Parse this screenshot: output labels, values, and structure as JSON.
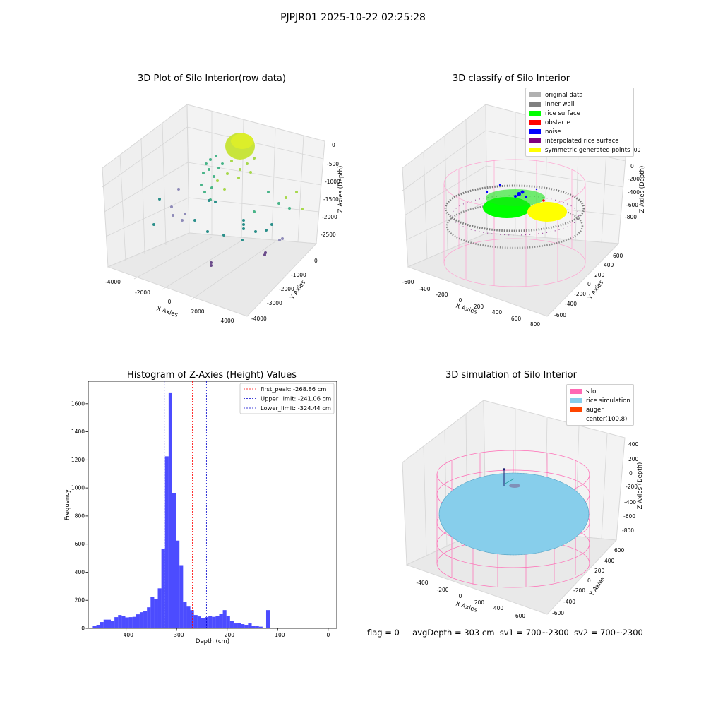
{
  "figure": {
    "suptitle": "PJPJR01 2025-10-22 02:25:28"
  },
  "panel_raw": {
    "title": "3D Plot of Silo Interior(row data)",
    "xlabel": "X Axies",
    "ylabel": "Y Axies",
    "zlabel": "Z Axies (Depth)",
    "xticks": [
      "-4000",
      "-2000",
      "0",
      "2000",
      "4000"
    ],
    "yticks": [
      "0",
      "-1000",
      "-2000",
      "-3000",
      "-4000"
    ],
    "zticks": [
      "0",
      "-500",
      "-1000",
      "-1500",
      "-2000",
      "-2500"
    ]
  },
  "panel_classify": {
    "title": "3D classify of Silo Interior",
    "xlabel": "X Axies",
    "ylabel": "Y Axies",
    "zlabel": "Z Axies (Depth)",
    "xticks": [
      "-600",
      "-400",
      "-200",
      "0",
      "200",
      "400",
      "600",
      "800"
    ],
    "yticks": [
      "600",
      "400",
      "200",
      "0",
      "-200",
      "-400",
      "-600"
    ],
    "zticks": [
      "200",
      "0",
      "-200",
      "-400",
      "-600",
      "-800"
    ],
    "legend": [
      {
        "label": "original data",
        "color": "#b0b0b0"
      },
      {
        "label": "inner wall",
        "color": "#808080"
      },
      {
        "label": "rice surface",
        "color": "#00ff00"
      },
      {
        "label": "obstacle",
        "color": "#ff0000"
      },
      {
        "label": "noise",
        "color": "#0000ff"
      },
      {
        "label": "interpolated rice surface",
        "color": "#800080"
      },
      {
        "label": "symmetric generated points",
        "color": "#ffff00"
      }
    ]
  },
  "panel_sim": {
    "title": "3D simulation of Silo Interior",
    "xlabel": "X Axies",
    "ylabel": "Y Axies",
    "zlabel": "Z Axies (Depth)",
    "xticks": [
      "-400",
      "-200",
      "0",
      "200",
      "400",
      "600"
    ],
    "yticks": [
      "600",
      "400",
      "200",
      "0",
      "-200",
      "-400",
      "-600"
    ],
    "zticks": [
      "400",
      "200",
      "0",
      "-200",
      "-400",
      "-600",
      "-800"
    ],
    "legend": [
      {
        "label": "silo",
        "color": "#ff69b4"
      },
      {
        "label": "rice simulation",
        "color": "#87ceeb"
      },
      {
        "label": "auger",
        "color": "#ff4500"
      },
      {
        "label": "center(100,8)",
        "color": "#ffffff"
      }
    ]
  },
  "footer": {
    "flag": "flag = 0",
    "avgDepth": "avgDepth = 303 cm",
    "sv1": "sv1 = 700~2300",
    "sv2": "sv2 = 700~2300"
  },
  "colors": {
    "hist_bar": "#0000ff",
    "first_peak": "#ff0000",
    "limits": "#0000cc"
  },
  "chart_data": [
    {
      "type": "bar",
      "title": "Histogram of Z-Axies (Height) Values",
      "xlabel": "Depth (cm)",
      "ylabel": "Frequency",
      "xlim": [
        -475,
        17
      ],
      "ylim": [
        0,
        1760
      ],
      "xticks": [
        -400,
        -300,
        -200,
        -100,
        0
      ],
      "yticks": [
        0,
        200,
        400,
        600,
        800,
        1000,
        1200,
        1400,
        1600
      ],
      "bin_edges_start": -466,
      "bin_width": 7.15,
      "values": [
        15,
        25,
        45,
        62,
        62,
        55,
        80,
        95,
        88,
        78,
        80,
        82,
        100,
        115,
        125,
        150,
        225,
        210,
        285,
        565,
        1225,
        1680,
        965,
        625,
        450,
        190,
        155,
        130,
        95,
        85,
        72,
        80,
        88,
        82,
        90,
        105,
        130,
        90,
        55,
        35,
        40,
        30,
        25,
        35,
        18,
        15,
        12,
        0,
        130
      ],
      "lines": [
        {
          "label": "first_peak: -268.86 cm",
          "x": -268.86,
          "color": "#ff0000"
        },
        {
          "label": "Upper_limit: -241.06 cm",
          "x": -241.06,
          "color": "#0000cc"
        },
        {
          "label": "Lower_limit: -324.44 cm",
          "x": -324.44,
          "color": "#0000cc"
        }
      ],
      "legend_position": "upper right"
    }
  ]
}
